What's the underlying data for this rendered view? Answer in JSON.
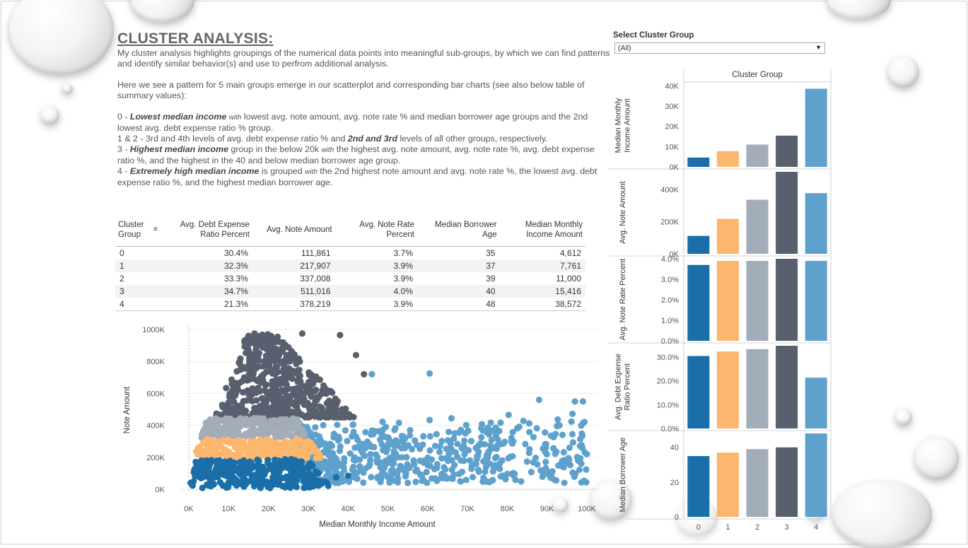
{
  "title": "CLUSTER ANALYSIS:",
  "intro": {
    "p1": "My cluster analysis highlights groupings of the numerical data points into meaningful sub-groups, by which we can find patterns and identify similar behavior(s) and use to perfrom additional analysis.",
    "p2": "Here we see a pattern for 5 main groups emerge in our scatterplot and corresponding bar charts (see also below table of summary values):",
    "g0": {
      "prefix": "0 - ",
      "bold": "Lowest  median income",
      "with": "with",
      "rest": "lowest avg. note amount, avg. note rate % and median borrower age groups and the 2nd lowest avg. debt expense ratio % group."
    },
    "g12": {
      "prefix": "1 & 2 - 3rd and 4th levels of avg. debt expense ratio % and ",
      "bold": "2nd and 3rd",
      "rest": " levels of all other groups, respectively."
    },
    "g3": {
      "prefix": "3 - ",
      "bold": "Highest  median income",
      "mid": " group in the below 20k ",
      "with": "with",
      "rest": "the highest avg. note amount, avg. note rate %, avg. debt expense ratio %, and the highest in the 40 and below median borrower age group."
    },
    "g4": {
      "prefix": "4 - ",
      "bold": "Extremely high  median income",
      "mid": " is grouped ",
      "with": "with",
      "rest": "the 2nd highest note amount and avg. note rate %, the lowest avg. debt expense ratio %, and the highest median borrower age."
    }
  },
  "filter": {
    "label": "Select Cluster Group",
    "value": "(All)"
  },
  "table": {
    "headers": [
      "Cluster Group",
      "Avg. Debt Expense Ratio Percent",
      "Avg. Note Amount",
      "Avg. Note Rate Percent",
      "Median Borrower Age",
      "Median Monthly Income Amount"
    ],
    "rows": [
      [
        "0",
        "30.4%",
        "111,861",
        "3.7%",
        "35",
        "4,612"
      ],
      [
        "1",
        "32.3%",
        "217,907",
        "3.9%",
        "37",
        "7,761"
      ],
      [
        "2",
        "33.3%",
        "337,008",
        "3.9%",
        "39",
        "11,000"
      ],
      [
        "3",
        "34.7%",
        "511,016",
        "4.0%",
        "40",
        "15,416"
      ],
      [
        "4",
        "21.3%",
        "378,219",
        "3.9%",
        "48",
        "38,572"
      ]
    ]
  },
  "colors": {
    "0": "#1a6fa8",
    "1": "#fdb66e",
    "2": "#a3acb9",
    "3": "#585f6e",
    "4": "#5ea1cc"
  },
  "chart_data": [
    {
      "type": "bar",
      "title": "Cluster Group",
      "categories": [
        "0",
        "1",
        "2",
        "3",
        "4"
      ],
      "panels": [
        {
          "ylabel": "Median Monthly Income Amount",
          "values": [
            4612,
            7761,
            11000,
            15416,
            38572
          ],
          "ylim": [
            0,
            40500
          ],
          "ticks": [
            0,
            10000,
            20000,
            30000,
            40000
          ],
          "tick_labels": [
            "0K",
            "10K",
            "20K",
            "30K",
            "40K"
          ]
        },
        {
          "ylabel": "Avg. Note Amount",
          "values": [
            111861,
            217907,
            337008,
            511016,
            378219
          ],
          "ylim": [
            0,
            511016
          ],
          "ticks": [
            0,
            200000,
            400000
          ],
          "tick_labels": [
            "0K",
            "200K",
            "400K"
          ]
        },
        {
          "ylabel": "Avg. Note Rate Percent",
          "values": [
            3.7,
            3.9,
            3.9,
            4.0,
            3.9
          ],
          "ylim": [
            0,
            4.0
          ],
          "ticks": [
            0,
            1,
            2,
            3,
            4
          ],
          "tick_labels": [
            "0.0%",
            "1.0%",
            "2.0%",
            "3.0%",
            "4.0%"
          ]
        },
        {
          "ylabel": "Avg. Debt Expense Ratio Percent",
          "values": [
            30.4,
            32.3,
            33.3,
            34.7,
            21.3
          ],
          "ylim": [
            0,
            34.7
          ],
          "ticks": [
            0,
            10,
            20,
            30
          ],
          "tick_labels": [
            "0.0%",
            "10.0%",
            "20.0%",
            "30.0%"
          ]
        },
        {
          "ylabel": "Median Borrower Age",
          "values": [
            35,
            37,
            39,
            40,
            48
          ],
          "ylim": [
            0,
            48
          ],
          "ticks": [
            0,
            20,
            40
          ],
          "tick_labels": [
            "0",
            "20",
            "40"
          ]
        }
      ]
    },
    {
      "type": "scatter",
      "xlabel": "Median Monthly Income Amount",
      "ylabel": "Note Amount",
      "xlim": [
        0,
        100000
      ],
      "ylim": [
        0,
        1000000
      ],
      "x_ticks": [
        0,
        10000,
        20000,
        30000,
        40000,
        50000,
        60000,
        70000,
        80000,
        90000,
        100000
      ],
      "x_tick_labels": [
        "0K",
        "10K",
        "20K",
        "30K",
        "40K",
        "50K",
        "60K",
        "70K",
        "80K",
        "90K",
        "100K"
      ],
      "y_ticks": [
        0,
        200000,
        400000,
        600000,
        800000,
        1000000
      ],
      "y_tick_labels": [
        "0K",
        "200K",
        "400K",
        "600K",
        "800K",
        "1000K"
      ],
      "clusters": [
        {
          "group": "0",
          "x_range": [
            0,
            37000
          ],
          "y_range": [
            0,
            190000
          ]
        },
        {
          "group": "1",
          "x_range": [
            1000,
            33000
          ],
          "y_range": [
            190000,
            320000
          ]
        },
        {
          "group": "2",
          "x_range": [
            2500,
            29000
          ],
          "y_range": [
            320000,
            450000
          ]
        },
        {
          "group": "3",
          "x_range": [
            5000,
            42000
          ],
          "y_range": [
            450000,
            990000
          ]
        },
        {
          "group": "4",
          "x_range": [
            28000,
            100000
          ],
          "y_range": [
            20000,
            680000
          ]
        }
      ]
    }
  ]
}
